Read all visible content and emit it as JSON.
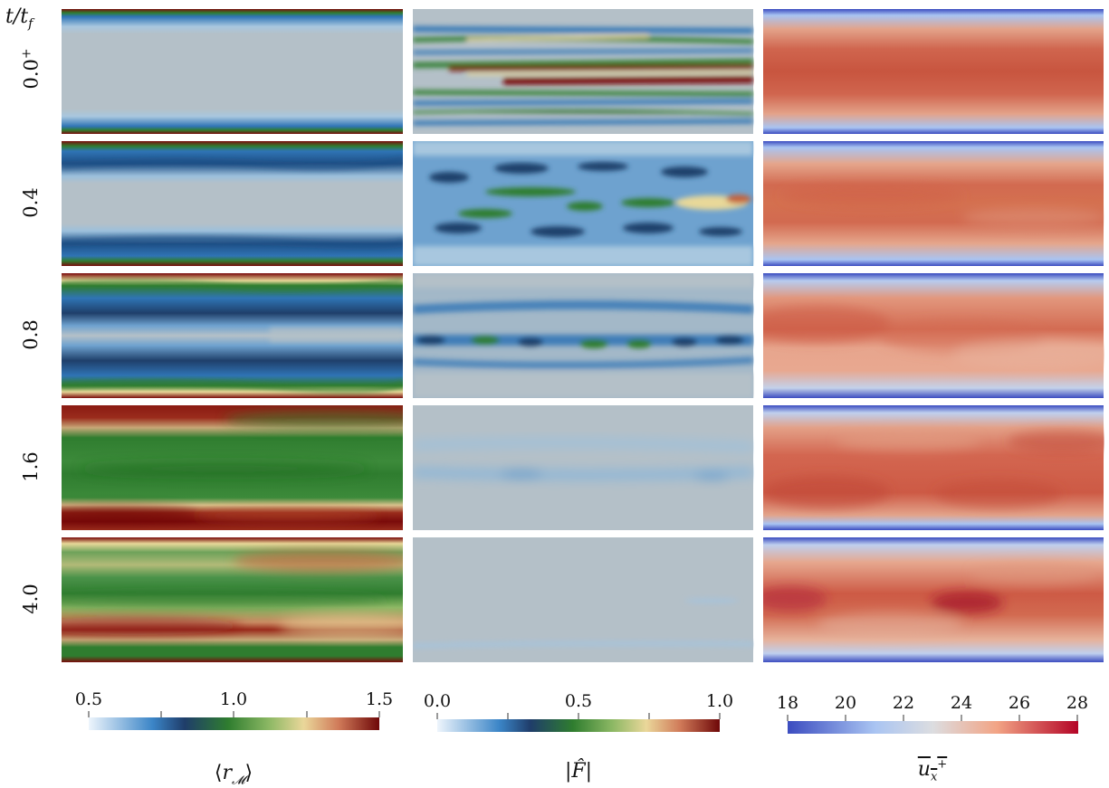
{
  "header": {
    "t": "t/t",
    "sub": "f"
  },
  "rows": [
    {
      "label": "0.0",
      "sup": "+"
    },
    {
      "label": "0.4",
      "sup": ""
    },
    {
      "label": "0.8",
      "sup": ""
    },
    {
      "label": "1.6",
      "sup": ""
    },
    {
      "label": "4.0",
      "sup": ""
    }
  ],
  "colorbars": [
    {
      "title": "⟨r_M⟩",
      "ticks": [
        "0.5",
        "1.0",
        "1.5"
      ]
    },
    {
      "title": "|F̂|",
      "ticks": [
        "0.0",
        "0.5",
        "1.0"
      ]
    },
    {
      "title": "u_x^+ (overlined)",
      "ticks": [
        "18",
        "20",
        "22",
        "24",
        "26",
        "28"
      ]
    }
  ],
  "colors": {
    "map_low": "#eaf3fb",
    "map_blue": "#2f74b5",
    "map_dark": "#1f3f6a",
    "map_green": "#2f7d2f",
    "map_yellow": "#e8d899",
    "map_high": "#7a0b0b",
    "cool_low": "#3b4cc0",
    "cool_mid": "#d8dce2",
    "cool_high": "#b40426"
  }
}
